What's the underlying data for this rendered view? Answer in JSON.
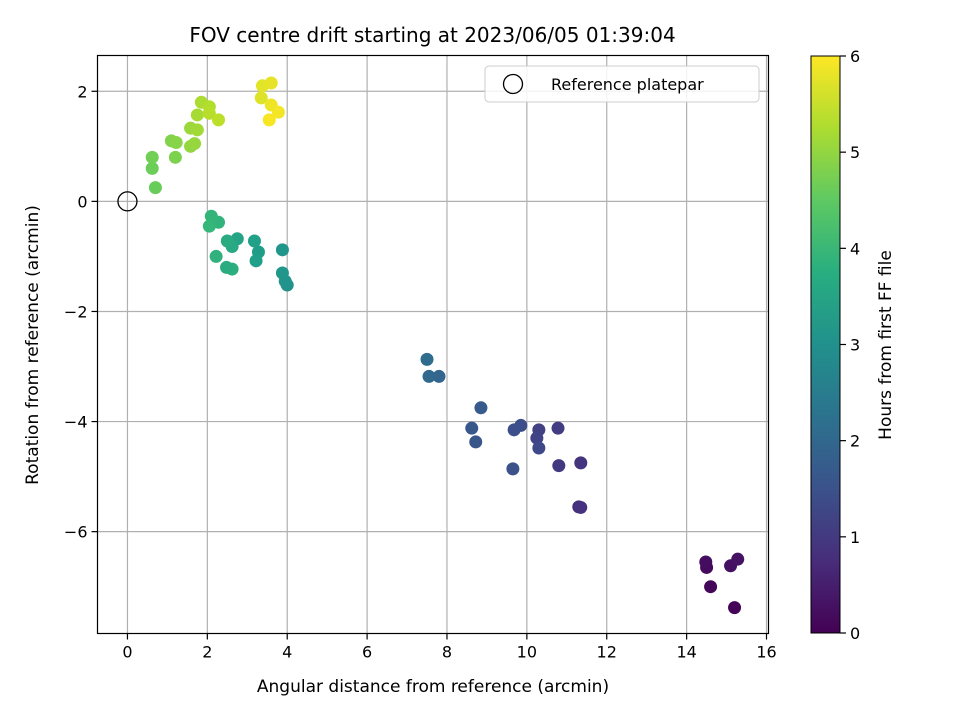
{
  "chart_data": {
    "type": "scatter",
    "title": "FOV centre drift starting at 2023/06/05 01:39:04",
    "xlabel": "Angular distance from reference (arcmin)",
    "ylabel": "Rotation from reference (arcmin)",
    "xlim": [
      -0.75,
      16.05
    ],
    "ylim": [
      -7.85,
      2.65
    ],
    "xticks": [
      0,
      2,
      4,
      6,
      8,
      10,
      12,
      14,
      16
    ],
    "yticks": [
      2,
      0,
      -2,
      -4,
      -6
    ],
    "grid": true,
    "legend": {
      "placement": "top-right",
      "entries": [
        "Reference platepar"
      ]
    },
    "reference_point": {
      "x": 0,
      "y": 0
    },
    "colorbar": {
      "label": "Hours from first FF file",
      "colormap": "viridis",
      "min": 0,
      "max": 6,
      "ticks": [
        0,
        1,
        2,
        3,
        4,
        5,
        6
      ]
    },
    "points": [
      {
        "x": 15.2,
        "y": -7.38,
        "c": 0.05
      },
      {
        "x": 14.6,
        "y": -7.0,
        "c": 0.1
      },
      {
        "x": 14.5,
        "y": -6.65,
        "c": 0.15
      },
      {
        "x": 14.48,
        "y": -6.55,
        "c": 0.2
      },
      {
        "x": 15.1,
        "y": -6.62,
        "c": 0.25
      },
      {
        "x": 15.28,
        "y": -6.5,
        "c": 0.3
      },
      {
        "x": 11.3,
        "y": -5.55,
        "c": 0.8
      },
      {
        "x": 11.35,
        "y": -5.56,
        "c": 0.85
      },
      {
        "x": 11.35,
        "y": -4.75,
        "c": 0.9
      },
      {
        "x": 10.8,
        "y": -4.8,
        "c": 1.0
      },
      {
        "x": 10.78,
        "y": -4.12,
        "c": 1.05
      },
      {
        "x": 10.3,
        "y": -4.15,
        "c": 1.15
      },
      {
        "x": 10.25,
        "y": -4.3,
        "c": 1.2
      },
      {
        "x": 10.3,
        "y": -4.48,
        "c": 1.3
      },
      {
        "x": 9.85,
        "y": -4.07,
        "c": 1.4
      },
      {
        "x": 9.68,
        "y": -4.15,
        "c": 1.45
      },
      {
        "x": 9.65,
        "y": -4.86,
        "c": 1.5
      },
      {
        "x": 8.85,
        "y": -3.75,
        "c": 1.7
      },
      {
        "x": 8.72,
        "y": -4.37,
        "c": 1.6
      },
      {
        "x": 8.62,
        "y": -4.12,
        "c": 1.65
      },
      {
        "x": 7.8,
        "y": -3.18,
        "c": 1.95
      },
      {
        "x": 7.55,
        "y": -3.18,
        "c": 2.0
      },
      {
        "x": 7.5,
        "y": -2.87,
        "c": 2.1
      },
      {
        "x": 4.0,
        "y": -1.52,
        "c": 3.05
      },
      {
        "x": 3.95,
        "y": -1.45,
        "c": 3.1
      },
      {
        "x": 3.88,
        "y": -1.3,
        "c": 3.15
      },
      {
        "x": 3.88,
        "y": -0.88,
        "c": 3.15
      },
      {
        "x": 3.28,
        "y": -0.92,
        "c": 3.3
      },
      {
        "x": 3.22,
        "y": -1.08,
        "c": 3.35
      },
      {
        "x": 3.18,
        "y": -0.72,
        "c": 3.4
      },
      {
        "x": 2.75,
        "y": -0.68,
        "c": 3.5
      },
      {
        "x": 2.62,
        "y": -0.82,
        "c": 3.6
      },
      {
        "x": 2.5,
        "y": -0.72,
        "c": 3.65
      },
      {
        "x": 2.62,
        "y": -1.23,
        "c": 3.75
      },
      {
        "x": 2.48,
        "y": -1.2,
        "c": 3.7
      },
      {
        "x": 2.22,
        "y": -1.0,
        "c": 3.85
      },
      {
        "x": 2.28,
        "y": -0.38,
        "c": 3.9
      },
      {
        "x": 2.1,
        "y": -0.27,
        "c": 3.95
      },
      {
        "x": 2.05,
        "y": -0.45,
        "c": 4.0
      },
      {
        "x": 0.7,
        "y": 0.25,
        "c": 4.6
      },
      {
        "x": 0.62,
        "y": 0.6,
        "c": 4.65
      },
      {
        "x": 0.62,
        "y": 0.8,
        "c": 4.7
      },
      {
        "x": 1.2,
        "y": 0.8,
        "c": 4.8
      },
      {
        "x": 1.1,
        "y": 1.1,
        "c": 4.85
      },
      {
        "x": 1.22,
        "y": 1.07,
        "c": 4.9
      },
      {
        "x": 1.58,
        "y": 1.0,
        "c": 5.0
      },
      {
        "x": 1.68,
        "y": 1.05,
        "c": 5.05
      },
      {
        "x": 1.58,
        "y": 1.33,
        "c": 5.1
      },
      {
        "x": 1.75,
        "y": 1.3,
        "c": 5.15
      },
      {
        "x": 1.75,
        "y": 1.57,
        "c": 5.2
      },
      {
        "x": 1.85,
        "y": 1.8,
        "c": 5.25
      },
      {
        "x": 2.05,
        "y": 1.72,
        "c": 5.3
      },
      {
        "x": 2.05,
        "y": 1.6,
        "c": 5.35
      },
      {
        "x": 2.28,
        "y": 1.48,
        "c": 5.4
      },
      {
        "x": 3.35,
        "y": 1.88,
        "c": 5.7
      },
      {
        "x": 3.38,
        "y": 2.1,
        "c": 5.75
      },
      {
        "x": 3.6,
        "y": 2.15,
        "c": 5.8
      },
      {
        "x": 3.6,
        "y": 1.75,
        "c": 5.85
      },
      {
        "x": 3.78,
        "y": 1.62,
        "c": 5.9
      },
      {
        "x": 3.55,
        "y": 1.48,
        "c": 5.95
      }
    ]
  }
}
